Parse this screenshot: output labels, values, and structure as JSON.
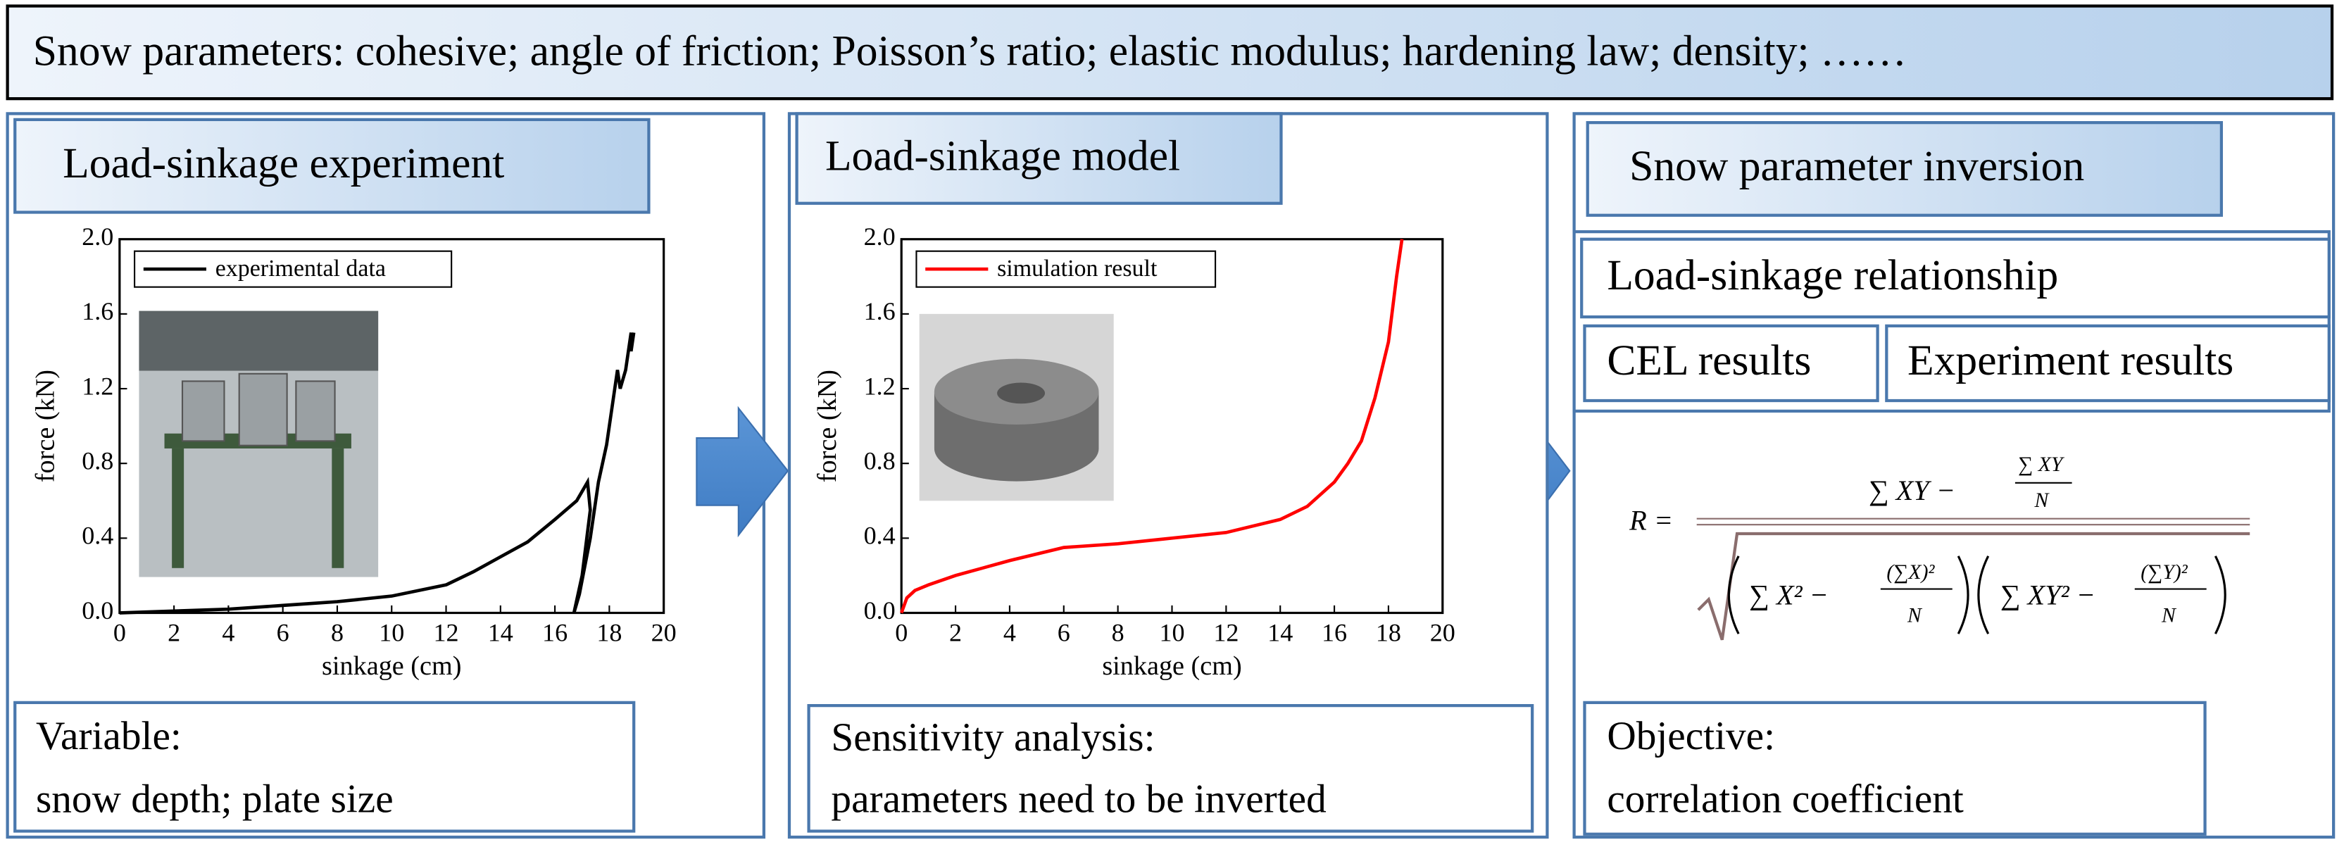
{
  "header": {
    "title": "Snow parameters: cohesive; angle of friction; Poisson’s ratio; elastic modulus; hardening law; density; ……"
  },
  "panels": [
    {
      "title": "Load-sinkage experiment",
      "note": {
        "heading": "Variable:",
        "text": "snow depth; plate size"
      }
    },
    {
      "title": "Load-sinkage model",
      "note": {
        "heading": "Sensitivity analysis:",
        "text": "parameters need to be inverted"
      }
    },
    {
      "title": "Snow parameter inversion",
      "relationship": "Load-sinkage relationship",
      "sources": [
        "CEL results",
        "Experiment results"
      ],
      "formula": {
        "lhs": "R =",
        "numerator": "∑ XY −",
        "num_frac_top": "∑ XY",
        "num_frac_bottom": "N",
        "den_left": "∑ X² −",
        "den_left_top": "(∑X)²",
        "den_left_bottom": "N",
        "den_right": "∑ XY² −",
        "den_right_top": "(∑Y)²",
        "den_right_bottom": "N"
      },
      "note": {
        "heading": "Objective:",
        "text": "correlation coefficient"
      }
    }
  ],
  "chart_data": [
    {
      "type": "line",
      "xlabel": "sinkage (cm)",
      "ylabel": "force (kN)",
      "x": [
        0,
        2,
        4,
        6,
        8,
        10,
        12,
        13,
        14,
        15,
        16,
        16.8,
        17.2,
        17.3,
        17,
        16.7,
        16.9,
        17.3,
        17.6,
        17.9,
        18.1,
        18.3,
        18.4,
        18.6,
        18.8,
        18.8,
        18.9
      ],
      "series": [
        {
          "name": "experimental data",
          "color": "#000000",
          "values": [
            0,
            0.01,
            0.02,
            0.04,
            0.06,
            0.09,
            0.15,
            0.22,
            0.3,
            0.38,
            0.5,
            0.6,
            0.7,
            0.55,
            0.2,
            0,
            0.1,
            0.4,
            0.7,
            0.9,
            1.1,
            1.3,
            1.2,
            1.3,
            1.5,
            1.4,
            1.5
          ]
        }
      ],
      "xlim": [
        0,
        20
      ],
      "xticks": [
        0,
        2,
        4,
        6,
        8,
        10,
        12,
        14,
        16,
        18,
        20
      ],
      "ylim": [
        0,
        2
      ],
      "yticks": [
        {
          "value": 0,
          "label": "0.0"
        },
        0.4,
        0.8,
        1.2,
        1.6,
        {
          "value": 2,
          "label": "2.0"
        }
      ]
    },
    {
      "type": "line",
      "xlabel": "sinkage (cm)",
      "ylabel": "force (kN)",
      "x": [
        0,
        0.2,
        0.5,
        1,
        2,
        4,
        6,
        8,
        10,
        12,
        14,
        15,
        16,
        16.5,
        17,
        17.5,
        18,
        18.3,
        18.5
      ],
      "series": [
        {
          "name": "simulation result",
          "color": "#ff0000",
          "values": [
            0,
            0.08,
            0.12,
            0.15,
            0.2,
            0.28,
            0.35,
            0.37,
            0.4,
            0.43,
            0.5,
            0.57,
            0.7,
            0.8,
            0.92,
            1.15,
            1.45,
            1.8,
            2
          ]
        }
      ],
      "xlim": [
        0,
        20
      ],
      "xticks": [
        0,
        2,
        4,
        6,
        8,
        10,
        12,
        14,
        16,
        18,
        20
      ],
      "ylim": [
        0,
        2
      ],
      "yticks": [
        {
          "value": 0,
          "label": "0.0"
        },
        0.4,
        0.8,
        1.2,
        1.6,
        {
          "value": 2,
          "label": "2.0"
        }
      ]
    }
  ]
}
